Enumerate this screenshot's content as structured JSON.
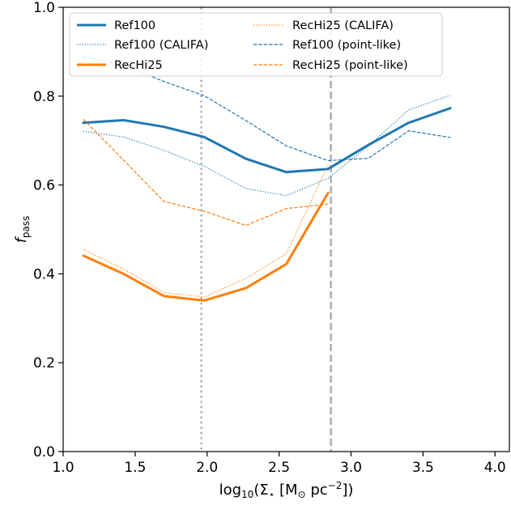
{
  "chart_data": {
    "type": "line",
    "xlabel_parts": {
      "prefix": "log",
      "base": "10",
      "open": "(Σ",
      "sub": "⋆",
      "mid": " [M",
      "sun": "⊙",
      "unit": " pc",
      "exp": "−2",
      "close": "])"
    },
    "ylabel_parts": {
      "main": "f",
      "sub": "pass"
    },
    "xlim": [
      1.0,
      4.1
    ],
    "ylim": [
      0.0,
      1.0
    ],
    "xticks": [
      1.0,
      1.5,
      2.0,
      2.5,
      3.0,
      3.5,
      4.0
    ],
    "xtick_labels": [
      "1.0",
      "1.5",
      "2.0",
      "2.5",
      "3.0",
      "3.5",
      "4.0"
    ],
    "yticks": [
      0.0,
      0.2,
      0.4,
      0.6,
      0.8,
      1.0
    ],
    "ytick_labels": [
      "0.0",
      "0.2",
      "0.4",
      "0.6",
      "0.8",
      "1.0"
    ],
    "grid": false,
    "legend_placement": "top, two columns",
    "vlines": [
      {
        "x": 1.96,
        "style": "dotted",
        "color": "#aaaaaa"
      },
      {
        "x": 2.86,
        "style": "dashed",
        "color": "#aaaaaa"
      }
    ],
    "series": [
      {
        "name": "Ref100",
        "color": "#1f77b4",
        "style": "solid",
        "width": 3,
        "x": [
          1.14,
          1.42,
          1.7,
          1.98,
          2.27,
          2.55,
          2.84,
          3.12,
          3.4,
          3.69
        ],
        "y": [
          0.74,
          0.746,
          0.731,
          0.708,
          0.659,
          0.629,
          0.636,
          0.69,
          0.74,
          0.773
        ]
      },
      {
        "name": "Ref100 (CALIFA)",
        "color": "#1f77b4",
        "style": "dotted",
        "width": 1.2,
        "x": [
          1.14,
          1.42,
          1.7,
          1.98,
          2.27,
          2.55,
          2.84,
          3.12,
          3.4,
          3.69
        ],
        "y": [
          0.721,
          0.708,
          0.678,
          0.642,
          0.592,
          0.576,
          0.615,
          0.688,
          0.769,
          0.802
        ]
      },
      {
        "name": "RecHi25",
        "color": "#ff7f0e",
        "style": "solid",
        "width": 3,
        "x": [
          1.14,
          1.42,
          1.7,
          1.98,
          2.27,
          2.55,
          2.84
        ],
        "y": [
          0.441,
          0.4,
          0.35,
          0.34,
          0.368,
          0.422,
          0.582
        ]
      },
      {
        "name": "RecHi25 (CALIFA)",
        "color": "#ff7f0e",
        "style": "dotted",
        "width": 1.2,
        "x": [
          1.14,
          1.42,
          1.7,
          1.98,
          2.27,
          2.55,
          2.84
        ],
        "y": [
          0.455,
          0.411,
          0.358,
          0.348,
          0.39,
          0.445,
          0.645
        ]
      },
      {
        "name": "Ref100 (point-like)",
        "color": "#1f77b4",
        "style": "dashed",
        "width": 1.2,
        "x": [
          1.14,
          1.42,
          1.7,
          1.98,
          2.27,
          2.55,
          2.84,
          3.12,
          3.4,
          3.69
        ],
        "y": [
          0.889,
          0.87,
          0.833,
          0.801,
          0.745,
          0.688,
          0.655,
          0.66,
          0.722,
          0.707
        ]
      },
      {
        "name": "RecHi25 (point-like)",
        "color": "#ff7f0e",
        "style": "dashed",
        "width": 1.2,
        "x": [
          1.14,
          1.42,
          1.7,
          1.98,
          2.27,
          2.55,
          2.84
        ],
        "y": [
          0.748,
          0.656,
          0.563,
          0.541,
          0.509,
          0.547,
          0.557
        ]
      }
    ],
    "legend_order": [
      0,
      1,
      2,
      3,
      4,
      5
    ]
  }
}
